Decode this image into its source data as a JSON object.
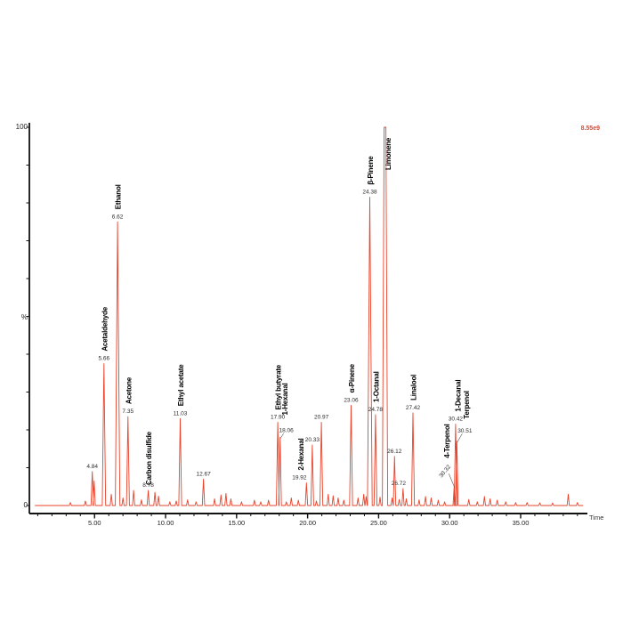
{
  "header": {
    "intensity_label": "8.55e9"
  },
  "axis": {
    "y_max": "100",
    "y_unit": "%",
    "y_min": "0",
    "x_title": "Time"
  },
  "chart_data": {
    "type": "line",
    "title": "",
    "xlabel": "Time",
    "ylabel": "%",
    "xlim": [
      0.41,
      39.7
    ],
    "ylim": [
      0,
      100
    ],
    "grid": false,
    "legend": "none",
    "trace_color": "#e8432b",
    "annotation_color": "#2b2b2b",
    "axis_color": "#111111",
    "trace_start": 0.8,
    "trace_end": 39.4,
    "x_tick_values": [
      5,
      10,
      15,
      20,
      25,
      30,
      35
    ],
    "x_tick_labels": [
      "5.00",
      "10.00",
      "15.00",
      "20.00",
      "25.00",
      "30.00",
      "35.00"
    ],
    "peaks": [
      {
        "rt": 4.84,
        "pct": 9,
        "num": "4.84"
      },
      {
        "rt": 5.66,
        "pct": 37.5,
        "num": "5.66",
        "name": "Acetaldehyde"
      },
      {
        "rt": 6.62,
        "pct": 75,
        "num": "6.62",
        "name": "Ethanol"
      },
      {
        "rt": 7.35,
        "pct": 23.5,
        "num": "7.35",
        "name": "Acetone"
      },
      {
        "rt": 8.78,
        "pct": 4,
        "num": "8.78",
        "name": "Carbon disulfide",
        "my": 8
      },
      {
        "rt": 11.03,
        "pct": 23,
        "num": "11.03",
        "name": "Ethyl acetate"
      },
      {
        "rt": 12.67,
        "pct": 7,
        "num": "12.67"
      },
      {
        "rt": 17.9,
        "pct": 22,
        "num": "17.90",
        "name": "Ethyl butyrate"
      },
      {
        "rt": 18.06,
        "pct": 18,
        "num": "18.06",
        "name": "1-Hexanal",
        "nx": 7,
        "ny": -2,
        "mx": 5,
        "my": -11,
        "leader": true
      },
      {
        "rt": 19.92,
        "pct": 6,
        "num": "19.92",
        "name": "2-Hexanal",
        "nx": -8,
        "mx": -7
      },
      {
        "rt": 20.33,
        "pct": 16,
        "num": "20.33"
      },
      {
        "rt": 20.97,
        "pct": 22,
        "num": "20.97"
      },
      {
        "rt": 23.06,
        "pct": 26.5,
        "num": "23.06",
        "name": "α-Pinene"
      },
      {
        "rt": 24.38,
        "pct": 81.5,
        "num": "24.38",
        "name": "β-Pinene"
      },
      {
        "rt": 24.78,
        "pct": 24,
        "num": "24.78",
        "name": "1-Octanal"
      },
      {
        "rt": 25.45,
        "pct": 100,
        "name": "Limonene",
        "mx": 3,
        "my": 62
      },
      {
        "rt": 26.12,
        "pct": 13,
        "num": "26.12"
      },
      {
        "rt": 26.72,
        "pct": 4.5,
        "num": "26.72",
        "nx": -5
      },
      {
        "rt": 27.42,
        "pct": 24.5,
        "num": "27.42",
        "name": "Linalool"
      },
      {
        "rt": 30.32,
        "pct": 5,
        "num": "30.32",
        "name": "4-Terpenol",
        "numrot": -50,
        "nx": -9,
        "ny": -12,
        "mx": -9,
        "my": -18,
        "leader": true
      },
      {
        "rt": 30.42,
        "pct": 21.5,
        "num": "30.42",
        "name": "1-Decanal",
        "mx": 2
      },
      {
        "rt": 30.51,
        "pct": 17,
        "num": "30.51",
        "name": "Terpenol",
        "nx": 9,
        "ny": -6,
        "mx": 10,
        "my": -11,
        "leader": true
      }
    ],
    "noise": [
      [
        3.3,
        0.8
      ],
      [
        4.35,
        1.2
      ],
      [
        4.97,
        6.5
      ],
      [
        6.18,
        3
      ],
      [
        7.0,
        2
      ],
      [
        7.75,
        4
      ],
      [
        8.3,
        1.5
      ],
      [
        9.25,
        3.5
      ],
      [
        9.5,
        2.5
      ],
      [
        10.3,
        1
      ],
      [
        10.75,
        1.2
      ],
      [
        11.55,
        1.5
      ],
      [
        12.15,
        1
      ],
      [
        13.45,
        1.8
      ],
      [
        13.9,
        2.8
      ],
      [
        14.25,
        3.2
      ],
      [
        14.6,
        1.8
      ],
      [
        15.35,
        1
      ],
      [
        16.25,
        1.4
      ],
      [
        16.7,
        1
      ],
      [
        17.25,
        1.4
      ],
      [
        18.5,
        1
      ],
      [
        18.85,
        2
      ],
      [
        19.35,
        1.4
      ],
      [
        20.62,
        1.2
      ],
      [
        21.45,
        3
      ],
      [
        21.8,
        2.6
      ],
      [
        22.15,
        2
      ],
      [
        22.55,
        1.4
      ],
      [
        23.55,
        2
      ],
      [
        23.95,
        3
      ],
      [
        24.12,
        2.4
      ],
      [
        25.1,
        2.2
      ],
      [
        25.95,
        2
      ],
      [
        26.45,
        1.6
      ],
      [
        26.95,
        1.8
      ],
      [
        27.85,
        1.5
      ],
      [
        28.3,
        2.4
      ],
      [
        28.7,
        2
      ],
      [
        29.2,
        1.4
      ],
      [
        29.65,
        1
      ],
      [
        31.35,
        1.6
      ],
      [
        31.95,
        1
      ],
      [
        32.45,
        2.4
      ],
      [
        32.85,
        1.8
      ],
      [
        33.35,
        1.4
      ],
      [
        33.95,
        1
      ],
      [
        34.65,
        0.8
      ],
      [
        35.45,
        0.8
      ],
      [
        36.35,
        0.7
      ],
      [
        37.25,
        0.7
      ],
      [
        38.35,
        3
      ],
      [
        39.0,
        0.8
      ]
    ]
  }
}
